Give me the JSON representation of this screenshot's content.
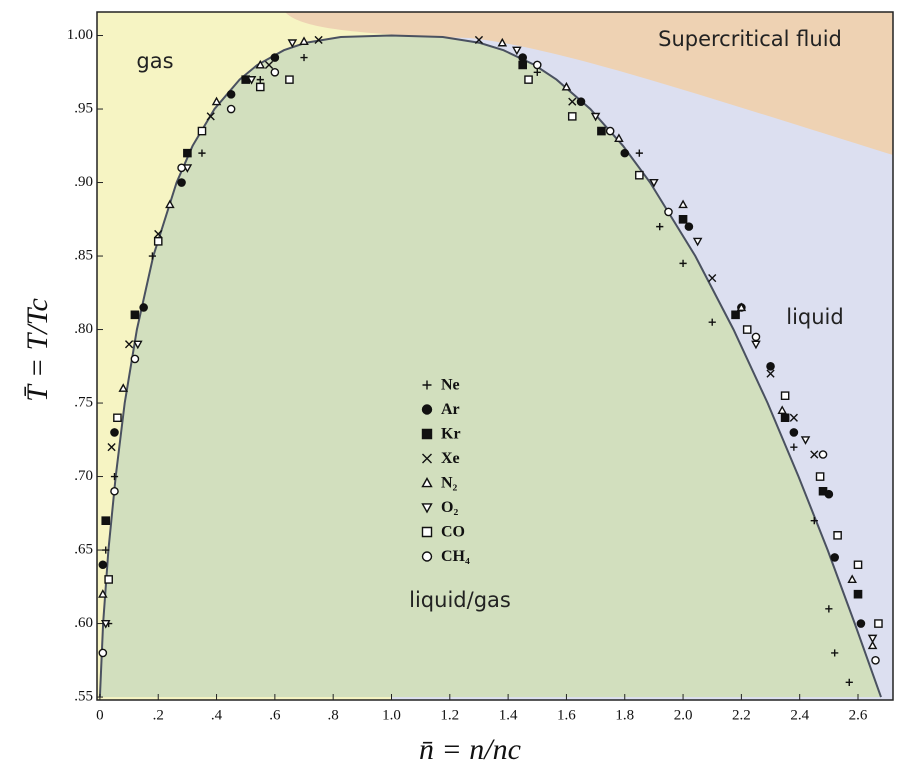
{
  "chart_data": {
    "type": "scatter",
    "xlabel": "n̄ = n/nc",
    "ylabel": "T̄ = T/Tc",
    "xlim": [
      -0.01,
      2.72
    ],
    "ylim": [
      0.548,
      1.016
    ],
    "xticks": [
      0,
      {
        "value": 0.2,
        "label": ".2"
      },
      {
        "value": 0.4,
        "label": ".4"
      },
      {
        "value": 0.6,
        "label": ".6"
      },
      {
        "value": 0.8,
        "label": ".8"
      },
      {
        "value": 1.0,
        "label": "1.0"
      },
      1.2,
      1.4,
      1.6,
      1.8,
      {
        "value": 2.0,
        "label": "2.0"
      },
      2.2,
      2.4,
      2.6
    ],
    "yticks": [
      {
        "value": 0.55,
        "label": ".55"
      },
      {
        "value": 0.6,
        "label": ".60"
      },
      {
        "value": 0.65,
        "label": ".65"
      },
      {
        "value": 0.7,
        "label": ".70"
      },
      {
        "value": 0.75,
        "label": ".75"
      },
      {
        "value": 0.8,
        "label": ".80"
      },
      {
        "value": 0.85,
        "label": ".85"
      },
      {
        "value": 0.9,
        "label": ".90"
      },
      {
        "value": 0.95,
        "label": ".95"
      },
      {
        "value": 1.0,
        "label": "1.00"
      }
    ],
    "regions": [
      {
        "label": "gas",
        "color": "#f6f4c3"
      },
      {
        "label": "liquid",
        "color": "#dcdff0"
      },
      {
        "label": "Supercritical fluid",
        "color": "#eed2b3"
      },
      {
        "label": "liquid/gas",
        "color": "#d2dfbe"
      }
    ],
    "fit_line": {
      "color": "#4a5160",
      "x": [
        0.0,
        0.011,
        0.029,
        0.054,
        0.085,
        0.127,
        0.183,
        0.263,
        0.318,
        0.393,
        0.479,
        0.54,
        0.631,
        0.704,
        0.826,
        1.0,
        1.176,
        1.303,
        1.384,
        1.49,
        1.566,
        1.682,
        1.794,
        1.887,
        2.042,
        2.173,
        2.29,
        2.396,
        2.496,
        2.589,
        2.679
      ],
      "y": [
        0.55,
        0.6,
        0.65,
        0.7,
        0.75,
        0.8,
        0.85,
        0.9,
        0.925,
        0.95,
        0.97,
        0.98,
        0.99,
        0.995,
        0.999,
        1.0,
        0.999,
        0.995,
        0.99,
        0.98,
        0.97,
        0.95,
        0.925,
        0.9,
        0.85,
        0.8,
        0.75,
        0.7,
        0.65,
        0.6,
        0.55
      ]
    },
    "series": [
      {
        "name": "Ne",
        "marker": "plus",
        "color": "#111111",
        "x": [
          0.02,
          0.03,
          0.05,
          0.18,
          0.35,
          0.55,
          0.7,
          1.5,
          1.85,
          1.92,
          2.0,
          2.1,
          2.38,
          2.45,
          2.5,
          2.52,
          2.57
        ],
        "y": [
          0.65,
          0.6,
          0.7,
          0.85,
          0.92,
          0.97,
          0.985,
          0.975,
          0.92,
          0.87,
          0.845,
          0.805,
          0.72,
          0.67,
          0.61,
          0.58,
          0.56
        ]
      },
      {
        "name": "Ar",
        "marker": "circle",
        "color": "#111111",
        "x": [
          0.01,
          0.05,
          0.15,
          0.28,
          0.45,
          0.6,
          1.45,
          1.65,
          1.8,
          2.02,
          2.2,
          2.3,
          2.38,
          2.5,
          2.52,
          2.61
        ],
        "y": [
          0.64,
          0.73,
          0.815,
          0.9,
          0.96,
          0.985,
          0.985,
          0.955,
          0.92,
          0.87,
          0.815,
          0.775,
          0.73,
          0.688,
          0.645,
          0.6
        ]
      },
      {
        "name": "Kr",
        "marker": "square",
        "color": "#111111",
        "x": [
          0.02,
          0.12,
          0.3,
          0.5,
          1.45,
          1.72,
          2.0,
          2.18,
          2.35,
          2.48,
          2.6
        ],
        "y": [
          0.67,
          0.81,
          0.92,
          0.97,
          0.98,
          0.935,
          0.875,
          0.81,
          0.74,
          0.69,
          0.62
        ]
      },
      {
        "name": "Xe",
        "marker": "x",
        "color": "#111111",
        "x": [
          0.04,
          0.1,
          0.2,
          0.38,
          0.58,
          0.75,
          1.3,
          1.62,
          2.1,
          2.3,
          2.38,
          2.45
        ],
        "y": [
          0.72,
          0.79,
          0.865,
          0.945,
          0.98,
          0.997,
          0.997,
          0.955,
          0.835,
          0.77,
          0.74,
          0.715
        ]
      },
      {
        "name": "N₂",
        "marker": "triangle-up",
        "color": "#111111",
        "x": [
          0.01,
          0.08,
          0.24,
          0.4,
          0.55,
          0.7,
          1.38,
          1.6,
          1.78,
          2.0,
          2.2,
          2.34,
          2.58,
          2.65
        ],
        "y": [
          0.62,
          0.76,
          0.885,
          0.955,
          0.98,
          0.996,
          0.995,
          0.965,
          0.93,
          0.885,
          0.815,
          0.745,
          0.63,
          0.585
        ]
      },
      {
        "name": "O₂",
        "marker": "triangle-down",
        "color": "#111111",
        "x": [
          0.02,
          0.13,
          0.3,
          0.52,
          0.66,
          1.43,
          1.7,
          1.9,
          2.05,
          2.25,
          2.42,
          2.65
        ],
        "y": [
          0.6,
          0.79,
          0.91,
          0.97,
          0.995,
          0.99,
          0.945,
          0.9,
          0.86,
          0.79,
          0.725,
          0.59
        ]
      },
      {
        "name": "CO",
        "marker": "square-open",
        "color": "#111111",
        "x": [
          0.03,
          0.06,
          0.2,
          0.35,
          0.55,
          0.65,
          1.47,
          1.62,
          1.85,
          2.22,
          2.35,
          2.47,
          2.53,
          2.6,
          2.67
        ],
        "y": [
          0.63,
          0.74,
          0.86,
          0.935,
          0.965,
          0.97,
          0.97,
          0.945,
          0.905,
          0.8,
          0.755,
          0.7,
          0.66,
          0.64,
          0.6
        ]
      },
      {
        "name": "CH₄",
        "marker": "circle-open",
        "color": "#111111",
        "x": [
          0.01,
          0.05,
          0.12,
          0.28,
          0.45,
          0.6,
          1.5,
          1.75,
          1.95,
          2.25,
          2.48,
          2.66
        ],
        "y": [
          0.58,
          0.69,
          0.78,
          0.91,
          0.95,
          0.975,
          0.98,
          0.935,
          0.88,
          0.795,
          0.715,
          0.575
        ]
      }
    ]
  }
}
